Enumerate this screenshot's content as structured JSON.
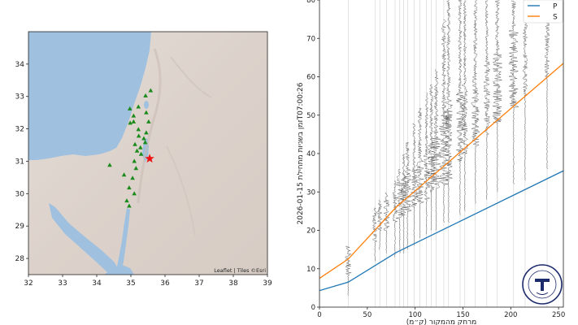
{
  "chart_data": [
    {
      "type": "scatter",
      "title": "",
      "xlabel": "",
      "ylabel": "",
      "xlim": [
        32,
        39
      ],
      "ylim": [
        27.5,
        35
      ],
      "x_ticks": [
        32,
        33,
        34,
        35,
        36,
        37,
        38,
        39
      ],
      "y_ticks": [
        28,
        29,
        30,
        31,
        32,
        33,
        34
      ],
      "attribution": "Leaflet | Tiles ©Esri",
      "colors": {
        "station": "#1a8a1a",
        "epicenter": "#ee1111",
        "sea": "#9dbfdf",
        "land": "#ddd4ce"
      },
      "stations": [
        [
          35.58,
          33.18
        ],
        [
          35.43,
          33.02
        ],
        [
          34.97,
          32.62
        ],
        [
          35.22,
          32.68
        ],
        [
          35.45,
          32.5
        ],
        [
          35.08,
          32.4
        ],
        [
          34.98,
          32.18
        ],
        [
          35.08,
          32.22
        ],
        [
          35.52,
          32.22
        ],
        [
          35.22,
          31.98
        ],
        [
          35.45,
          31.88
        ],
        [
          35.23,
          31.78
        ],
        [
          35.38,
          31.7
        ],
        [
          35.12,
          31.52
        ],
        [
          35.28,
          31.42
        ],
        [
          35.42,
          31.58
        ],
        [
          35.18,
          31.32
        ],
        [
          35.3,
          31.22
        ],
        [
          35.1,
          31.0
        ],
        [
          34.38,
          30.88
        ],
        [
          35.15,
          30.78
        ],
        [
          34.8,
          30.58
        ],
        [
          35.05,
          30.48
        ],
        [
          34.95,
          30.18
        ],
        [
          35.1,
          30.0
        ],
        [
          34.88,
          29.78
        ],
        [
          34.95,
          29.62
        ]
      ],
      "epicenter": [
        35.55,
        31.08
      ]
    },
    {
      "type": "line",
      "title": "",
      "xlabel": "(ק״מ) מרחק מהמקור",
      "ylabel": "זמן בשניות מתחילת 2026-01-15T07:00:26",
      "xlim": [
        0,
        255
      ],
      "ylim": [
        0,
        80
      ],
      "x_ticks": [
        0,
        50,
        100,
        150,
        200,
        250
      ],
      "y_ticks": [
        0,
        10,
        20,
        30,
        40,
        50,
        60,
        70,
        80
      ],
      "legend_position": "top-right",
      "colors": {
        "P": "#1f77b4",
        "S": "#ff7f0e"
      },
      "series": [
        {
          "name": "P",
          "x": [
            0,
            30,
            80,
            255
          ],
          "y": [
            4.3,
            6.5,
            14.2,
            35.5
          ]
        },
        {
          "name": "S",
          "x": [
            0,
            30,
            80,
            255
          ],
          "y": [
            7.5,
            12.5,
            26.0,
            63.5
          ]
        }
      ],
      "traces": [
        {
          "distance": 30,
          "start": 3,
          "end": 16,
          "amp": 4,
          "strong": [
            8,
            16
          ]
        },
        {
          "distance": 58,
          "start": 12,
          "end": 26,
          "amp": 3,
          "strong": [
            17,
            25
          ]
        },
        {
          "distance": 63,
          "start": 15,
          "end": 28,
          "amp": 3,
          "strong": [
            20,
            27
          ]
        },
        {
          "distance": 70,
          "start": 14,
          "end": 30,
          "amp": 4,
          "strong": [
            20,
            28
          ]
        },
        {
          "distance": 79,
          "start": 13,
          "end": 33,
          "amp": 3,
          "strong": [
            22,
            30
          ]
        },
        {
          "distance": 84,
          "start": 14,
          "end": 36,
          "amp": 5,
          "strong": [
            23,
            34
          ]
        },
        {
          "distance": 88,
          "start": 14,
          "end": 40,
          "amp": 4,
          "strong": [
            24,
            34
          ]
        },
        {
          "distance": 92,
          "start": 15,
          "end": 43,
          "amp": 5,
          "strong": [
            25,
            36
          ]
        },
        {
          "distance": 99,
          "start": 16,
          "end": 48,
          "amp": 4,
          "strong": [
            26,
            36
          ]
        },
        {
          "distance": 105,
          "start": 18,
          "end": 52,
          "amp": 5,
          "strong": [
            27,
            38
          ]
        },
        {
          "distance": 112,
          "start": 19,
          "end": 56,
          "amp": 4,
          "strong": [
            28,
            40
          ]
        },
        {
          "distance": 117,
          "start": 20,
          "end": 58,
          "amp": 5,
          "strong": [
            30,
            42
          ]
        },
        {
          "distance": 122,
          "start": 20,
          "end": 62,
          "amp": 6,
          "strong": [
            31,
            44
          ]
        },
        {
          "distance": 130,
          "start": 22,
          "end": 75,
          "amp": 6,
          "strong": [
            32,
            50
          ]
        },
        {
          "distance": 135,
          "start": 22,
          "end": 80,
          "amp": 5,
          "strong": [
            33,
            54
          ]
        },
        {
          "distance": 147,
          "start": 24,
          "end": 80,
          "amp": 5,
          "strong": [
            38,
            56
          ]
        },
        {
          "distance": 152,
          "start": 25,
          "end": 80,
          "amp": 4,
          "strong": [
            40,
            58
          ]
        },
        {
          "distance": 163,
          "start": 27,
          "end": 80,
          "amp": 5,
          "strong": [
            42,
            60
          ]
        },
        {
          "distance": 175,
          "start": 28,
          "end": 80,
          "amp": 4,
          "strong": [
            45,
            64
          ]
        },
        {
          "distance": 186,
          "start": 30,
          "end": 80,
          "amp": 6,
          "strong": [
            48,
            66
          ]
        },
        {
          "distance": 203,
          "start": 32,
          "end": 80,
          "amp": 6,
          "strong": [
            52,
            72
          ]
        },
        {
          "distance": 215,
          "start": 33,
          "end": 80,
          "amp": 3,
          "strong": [
            55,
            74
          ]
        },
        {
          "distance": 238,
          "start": 36,
          "end": 80,
          "amp": 3,
          "strong": [
            60,
            76
          ]
        }
      ],
      "logo": {
        "text_top": "השירות הגיאולוגי",
        "text_bottom": "GEOLOGICAL SURVEY OF ISRAEL"
      }
    }
  ]
}
